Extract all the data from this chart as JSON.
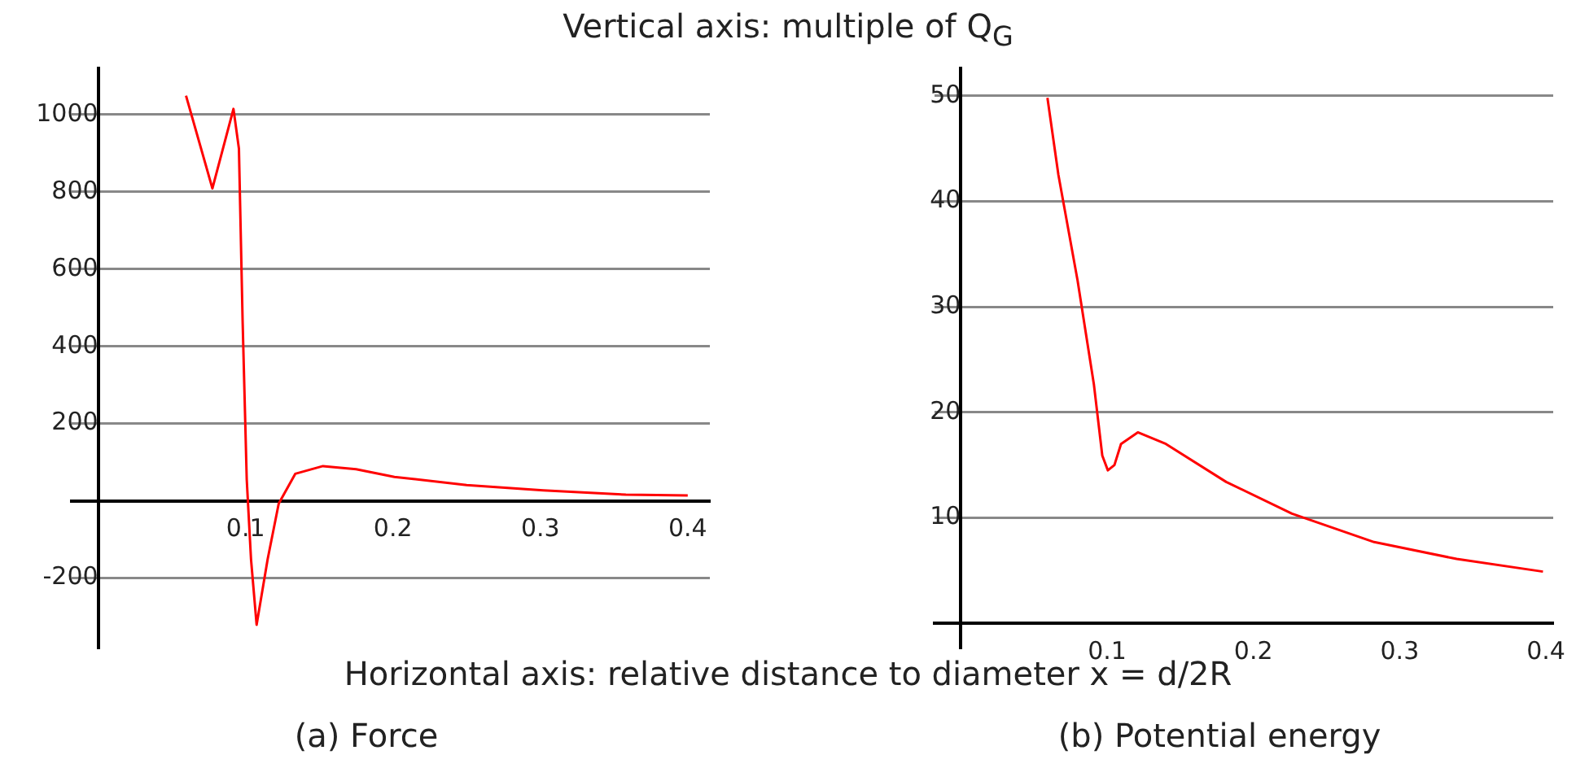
{
  "chart_data": [
    {
      "type": "line",
      "title": "(a) Force",
      "annotations": [
        "Vertical axis: multiple of Q$_{G}$",
        "Horizontal axis: relative distance to diameter x = d/2R"
      ],
      "series": [
        {
          "color": "#ff0000",
          "x": [
            0.0596,
            0.0775,
            0.0918,
            0.0955,
            0.098,
            0.1008,
            0.1037,
            0.1075,
            0.115,
            0.1225,
            0.1337,
            0.1525,
            0.175,
            0.201,
            0.25,
            0.302,
            0.358,
            0.4
          ],
          "values": [
            1049,
            809,
            1015,
            912,
            466,
            55,
            -151,
            -321,
            -151,
            -7,
            70,
            90,
            82,
            62,
            41,
            27,
            16,
            14
          ]
        }
      ],
      "xlim": [
        -0.018,
        0.415
      ],
      "xticks": [
        0.1,
        0.2,
        0.3,
        0.4
      ],
      "ylim": [
        -380,
        1120
      ],
      "yticks": [
        -200,
        200,
        400,
        600,
        800,
        1000
      ],
      "grid": "y",
      "marker": "none",
      "line_style": "solid",
      "legend": false
    },
    {
      "type": "line",
      "title": "(b) Potential energy",
      "series": [
        {
          "color": "#ff0000",
          "x": [
            0.0592,
            0.0667,
            0.0798,
            0.091,
            0.0967,
            0.1005,
            0.105,
            0.1095,
            0.121,
            0.1402,
            0.1814,
            0.2264,
            0.2826,
            0.339,
            0.398
          ],
          "values": [
            49.8,
            42.5,
            32.5,
            22.6,
            15.9,
            14.5,
            15.0,
            17.0,
            18.1,
            17.0,
            13.4,
            10.4,
            7.7,
            6.1,
            4.9
          ]
        }
      ],
      "xlim": [
        -0.018,
        0.405
      ],
      "xticks": [
        0.1,
        0.2,
        0.3,
        0.4
      ],
      "ylim": [
        -2.3,
        52.6
      ],
      "yticks": [
        10,
        20,
        30,
        40,
        50
      ],
      "grid": "y",
      "marker": "none",
      "line_style": "solid",
      "legend": false
    }
  ]
}
